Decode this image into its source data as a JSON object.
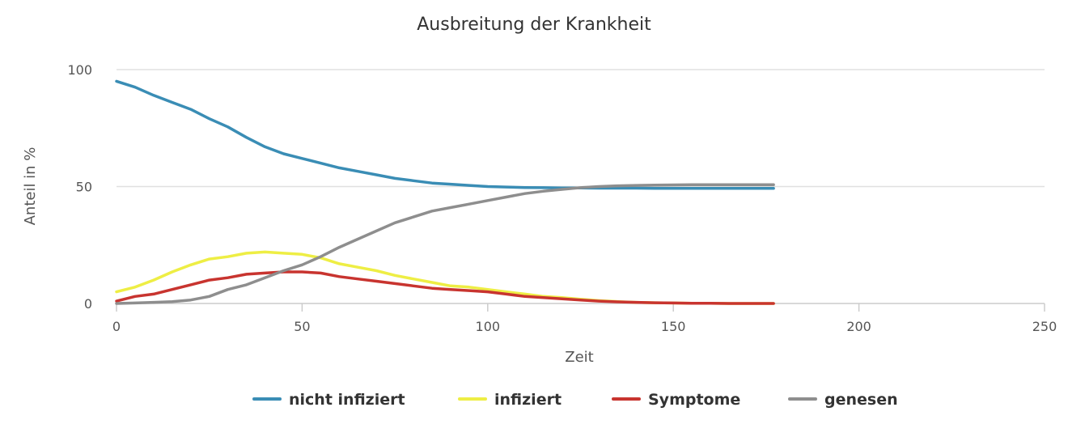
{
  "chart_data": {
    "type": "line",
    "title": "Ausbreitung der Krankheit",
    "xlabel": "Zeit",
    "ylabel": "Anteil in %",
    "xlim": [
      0,
      250
    ],
    "ylim": [
      0,
      100
    ],
    "xticks": [
      0,
      50,
      100,
      150,
      200,
      250
    ],
    "yticks": [
      0,
      50,
      100
    ],
    "grid": true,
    "legend_position": "bottom",
    "x": [
      0,
      5,
      10,
      15,
      20,
      25,
      30,
      35,
      40,
      45,
      50,
      55,
      60,
      65,
      70,
      75,
      80,
      85,
      90,
      95,
      100,
      105,
      110,
      115,
      120,
      125,
      130,
      135,
      140,
      145,
      150,
      155,
      160,
      165,
      170,
      175,
      177
    ],
    "series": [
      {
        "name": "nicht infiziert",
        "color": "#3a8db5",
        "values": [
          95,
          92.5,
          89,
          86,
          83,
          79,
          75.5,
          71,
          67,
          64,
          62,
          60,
          58,
          56.5,
          55,
          53.5,
          52.5,
          51.5,
          51,
          50.5,
          50,
          49.8,
          49.6,
          49.5,
          49.4,
          49.4,
          49.3,
          49.3,
          49.3,
          49.2,
          49.2,
          49.2,
          49.2,
          49.2,
          49.2,
          49.2,
          49.2
        ]
      },
      {
        "name": "infiziert",
        "color": "#eeee44",
        "values": [
          5,
          7,
          10,
          13.5,
          16.5,
          19,
          20,
          21.5,
          22,
          21.5,
          21,
          19.5,
          17,
          15.5,
          14,
          12,
          10.5,
          9,
          7.5,
          7,
          6,
          5,
          4,
          3,
          2.5,
          1.8,
          1.2,
          0.8,
          0.5,
          0.3,
          0.2,
          0.1,
          0.1,
          0,
          0,
          0,
          0
        ]
      },
      {
        "name": "Symptome",
        "color": "#c8342f",
        "values": [
          1,
          3,
          4,
          6,
          8,
          10,
          11,
          12.5,
          13,
          13.5,
          13.5,
          13,
          11.5,
          10.5,
          9.5,
          8.5,
          7.5,
          6.5,
          6,
          5.5,
          5,
          4,
          3,
          2.5,
          2,
          1.5,
          1,
          0.7,
          0.5,
          0.3,
          0.2,
          0.1,
          0.1,
          0,
          0,
          0,
          0
        ]
      },
      {
        "name": "genesen",
        "color": "#8e8e8e",
        "values": [
          0,
          0.2,
          0.5,
          0.8,
          1.5,
          3,
          6,
          8,
          11,
          14,
          16.5,
          20,
          24,
          27.5,
          31,
          34.5,
          37,
          39.5,
          41,
          42.5,
          44,
          45.5,
          47,
          48,
          48.8,
          49.5,
          50,
          50.3,
          50.5,
          50.6,
          50.7,
          50.8,
          50.8,
          50.8,
          50.8,
          50.8,
          50.8
        ]
      }
    ]
  }
}
